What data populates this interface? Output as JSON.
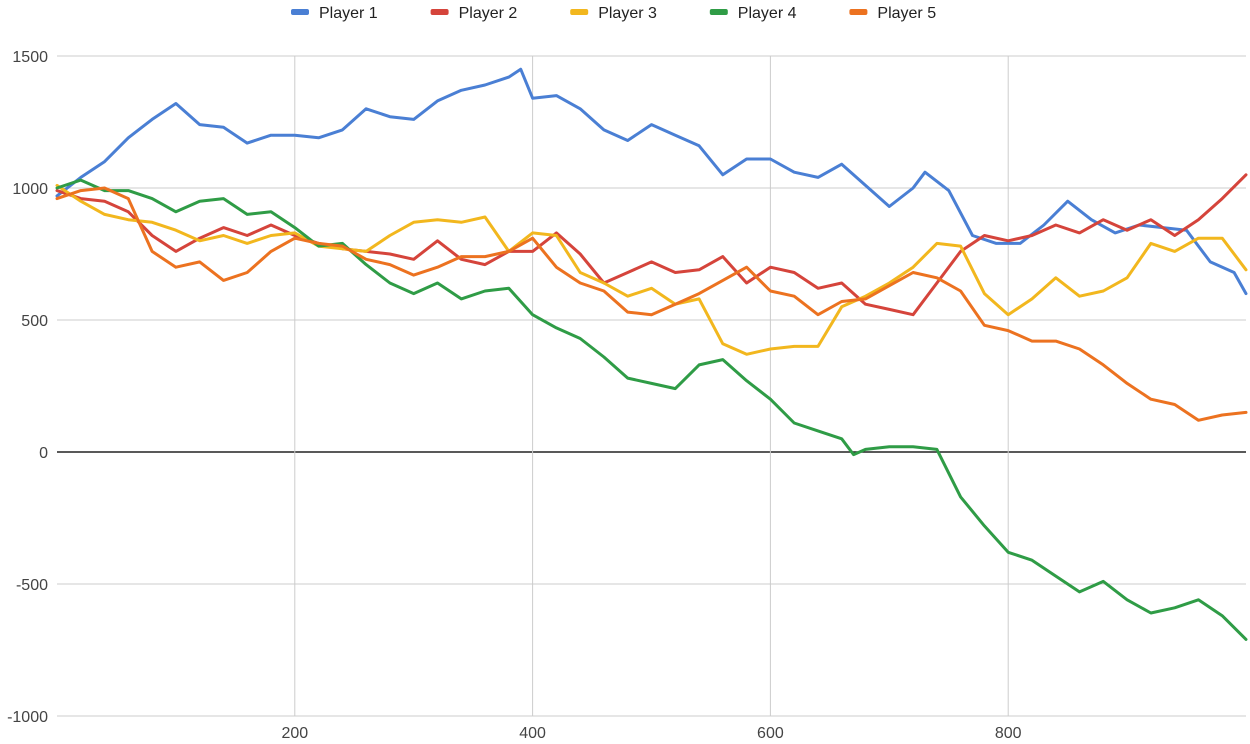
{
  "chart_data": {
    "type": "line",
    "title": "",
    "xlabel": "",
    "ylabel": "",
    "xlim": [
      0,
      1000
    ],
    "ylim": [
      -1000,
      1500
    ],
    "x_ticks": [
      200,
      400,
      600,
      800
    ],
    "y_ticks": [
      1500,
      1000,
      500,
      0,
      -500,
      -1000
    ],
    "grid": true,
    "legend": "top-center",
    "series": [
      {
        "name": "Player 1",
        "color": "#4a7fd4",
        "points": [
          [
            0,
            970
          ],
          [
            20,
            1040
          ],
          [
            40,
            1100
          ],
          [
            60,
            1190
          ],
          [
            80,
            1260
          ],
          [
            100,
            1320
          ],
          [
            120,
            1240
          ],
          [
            140,
            1230
          ],
          [
            160,
            1170
          ],
          [
            180,
            1200
          ],
          [
            200,
            1200
          ],
          [
            220,
            1190
          ],
          [
            240,
            1220
          ],
          [
            260,
            1300
          ],
          [
            280,
            1270
          ],
          [
            300,
            1260
          ],
          [
            320,
            1330
          ],
          [
            340,
            1370
          ],
          [
            360,
            1390
          ],
          [
            380,
            1420
          ],
          [
            390,
            1450
          ],
          [
            400,
            1340
          ],
          [
            420,
            1350
          ],
          [
            440,
            1300
          ],
          [
            460,
            1220
          ],
          [
            480,
            1180
          ],
          [
            500,
            1240
          ],
          [
            520,
            1200
          ],
          [
            540,
            1160
          ],
          [
            560,
            1050
          ],
          [
            580,
            1110
          ],
          [
            600,
            1110
          ],
          [
            620,
            1060
          ],
          [
            640,
            1040
          ],
          [
            660,
            1090
          ],
          [
            680,
            1010
          ],
          [
            700,
            930
          ],
          [
            720,
            1000
          ],
          [
            730,
            1060
          ],
          [
            750,
            990
          ],
          [
            770,
            820
          ],
          [
            790,
            790
          ],
          [
            810,
            790
          ],
          [
            830,
            860
          ],
          [
            850,
            950
          ],
          [
            870,
            880
          ],
          [
            890,
            830
          ],
          [
            910,
            860
          ],
          [
            930,
            850
          ],
          [
            950,
            840
          ],
          [
            970,
            720
          ],
          [
            990,
            680
          ],
          [
            1000,
            600
          ]
        ]
      },
      {
        "name": "Player 2",
        "color": "#d5443b",
        "points": [
          [
            0,
            990
          ],
          [
            20,
            960
          ],
          [
            40,
            950
          ],
          [
            60,
            910
          ],
          [
            80,
            820
          ],
          [
            100,
            760
          ],
          [
            120,
            810
          ],
          [
            140,
            850
          ],
          [
            160,
            820
          ],
          [
            180,
            860
          ],
          [
            200,
            820
          ],
          [
            220,
            790
          ],
          [
            240,
            770
          ],
          [
            260,
            760
          ],
          [
            280,
            750
          ],
          [
            300,
            730
          ],
          [
            320,
            800
          ],
          [
            340,
            730
          ],
          [
            360,
            710
          ],
          [
            380,
            760
          ],
          [
            400,
            760
          ],
          [
            420,
            830
          ],
          [
            440,
            750
          ],
          [
            460,
            640
          ],
          [
            480,
            680
          ],
          [
            500,
            720
          ],
          [
            520,
            680
          ],
          [
            540,
            690
          ],
          [
            560,
            740
          ],
          [
            580,
            640
          ],
          [
            600,
            700
          ],
          [
            620,
            680
          ],
          [
            640,
            620
          ],
          [
            660,
            640
          ],
          [
            680,
            560
          ],
          [
            700,
            540
          ],
          [
            720,
            520
          ],
          [
            740,
            640
          ],
          [
            760,
            760
          ],
          [
            780,
            820
          ],
          [
            800,
            800
          ],
          [
            820,
            820
          ],
          [
            840,
            860
          ],
          [
            860,
            830
          ],
          [
            880,
            880
          ],
          [
            900,
            840
          ],
          [
            920,
            880
          ],
          [
            940,
            820
          ],
          [
            960,
            880
          ],
          [
            980,
            960
          ],
          [
            1000,
            1050
          ]
        ]
      },
      {
        "name": "Player 3",
        "color": "#f2b71e",
        "points": [
          [
            0,
            1010
          ],
          [
            20,
            950
          ],
          [
            40,
            900
          ],
          [
            60,
            880
          ],
          [
            80,
            870
          ],
          [
            100,
            840
          ],
          [
            120,
            800
          ],
          [
            140,
            820
          ],
          [
            160,
            790
          ],
          [
            180,
            820
          ],
          [
            200,
            830
          ],
          [
            220,
            780
          ],
          [
            240,
            770
          ],
          [
            260,
            760
          ],
          [
            280,
            820
          ],
          [
            300,
            870
          ],
          [
            320,
            880
          ],
          [
            340,
            870
          ],
          [
            360,
            890
          ],
          [
            380,
            760
          ],
          [
            400,
            830
          ],
          [
            420,
            820
          ],
          [
            440,
            680
          ],
          [
            460,
            640
          ],
          [
            480,
            590
          ],
          [
            500,
            620
          ],
          [
            520,
            560
          ],
          [
            540,
            580
          ],
          [
            560,
            410
          ],
          [
            580,
            370
          ],
          [
            600,
            390
          ],
          [
            620,
            400
          ],
          [
            640,
            400
          ],
          [
            660,
            550
          ],
          [
            680,
            590
          ],
          [
            700,
            640
          ],
          [
            720,
            700
          ],
          [
            740,
            790
          ],
          [
            760,
            780
          ],
          [
            780,
            600
          ],
          [
            800,
            520
          ],
          [
            820,
            580
          ],
          [
            840,
            660
          ],
          [
            860,
            590
          ],
          [
            880,
            610
          ],
          [
            900,
            660
          ],
          [
            920,
            790
          ],
          [
            940,
            760
          ],
          [
            960,
            810
          ],
          [
            980,
            810
          ],
          [
            1000,
            690
          ]
        ]
      },
      {
        "name": "Player 4",
        "color": "#2f9c46",
        "points": [
          [
            0,
            1000
          ],
          [
            20,
            1030
          ],
          [
            40,
            990
          ],
          [
            60,
            990
          ],
          [
            80,
            960
          ],
          [
            100,
            910
          ],
          [
            120,
            950
          ],
          [
            140,
            960
          ],
          [
            160,
            900
          ],
          [
            180,
            910
          ],
          [
            200,
            850
          ],
          [
            220,
            780
          ],
          [
            240,
            790
          ],
          [
            260,
            710
          ],
          [
            280,
            640
          ],
          [
            300,
            600
          ],
          [
            320,
            640
          ],
          [
            340,
            580
          ],
          [
            360,
            610
          ],
          [
            380,
            620
          ],
          [
            400,
            520
          ],
          [
            420,
            470
          ],
          [
            440,
            430
          ],
          [
            460,
            360
          ],
          [
            480,
            280
          ],
          [
            500,
            260
          ],
          [
            520,
            240
          ],
          [
            540,
            330
          ],
          [
            560,
            350
          ],
          [
            580,
            270
          ],
          [
            600,
            200
          ],
          [
            620,
            110
          ],
          [
            640,
            80
          ],
          [
            660,
            50
          ],
          [
            670,
            -10
          ],
          [
            680,
            10
          ],
          [
            700,
            20
          ],
          [
            720,
            20
          ],
          [
            740,
            10
          ],
          [
            760,
            -170
          ],
          [
            780,
            -280
          ],
          [
            800,
            -380
          ],
          [
            820,
            -410
          ],
          [
            840,
            -470
          ],
          [
            860,
            -530
          ],
          [
            880,
            -490
          ],
          [
            900,
            -560
          ],
          [
            920,
            -610
          ],
          [
            940,
            -590
          ],
          [
            960,
            -560
          ],
          [
            980,
            -620
          ],
          [
            1000,
            -710
          ]
        ]
      },
      {
        "name": "Player 5",
        "color": "#ec7220",
        "points": [
          [
            0,
            960
          ],
          [
            20,
            990
          ],
          [
            40,
            1000
          ],
          [
            60,
            960
          ],
          [
            80,
            760
          ],
          [
            100,
            700
          ],
          [
            120,
            720
          ],
          [
            140,
            650
          ],
          [
            160,
            680
          ],
          [
            180,
            760
          ],
          [
            200,
            810
          ],
          [
            220,
            790
          ],
          [
            240,
            780
          ],
          [
            260,
            730
          ],
          [
            280,
            710
          ],
          [
            300,
            670
          ],
          [
            320,
            700
          ],
          [
            340,
            740
          ],
          [
            360,
            740
          ],
          [
            380,
            760
          ],
          [
            400,
            810
          ],
          [
            420,
            700
          ],
          [
            440,
            640
          ],
          [
            460,
            610
          ],
          [
            480,
            530
          ],
          [
            500,
            520
          ],
          [
            520,
            560
          ],
          [
            540,
            600
          ],
          [
            560,
            650
          ],
          [
            580,
            700
          ],
          [
            600,
            610
          ],
          [
            620,
            590
          ],
          [
            640,
            520
          ],
          [
            660,
            570
          ],
          [
            680,
            580
          ],
          [
            700,
            630
          ],
          [
            720,
            680
          ],
          [
            740,
            660
          ],
          [
            760,
            610
          ],
          [
            780,
            480
          ],
          [
            800,
            460
          ],
          [
            820,
            420
          ],
          [
            840,
            420
          ],
          [
            860,
            390
          ],
          [
            880,
            330
          ],
          [
            900,
            260
          ],
          [
            920,
            200
          ],
          [
            940,
            180
          ],
          [
            960,
            120
          ],
          [
            980,
            140
          ],
          [
            1000,
            150
          ]
        ]
      }
    ]
  }
}
